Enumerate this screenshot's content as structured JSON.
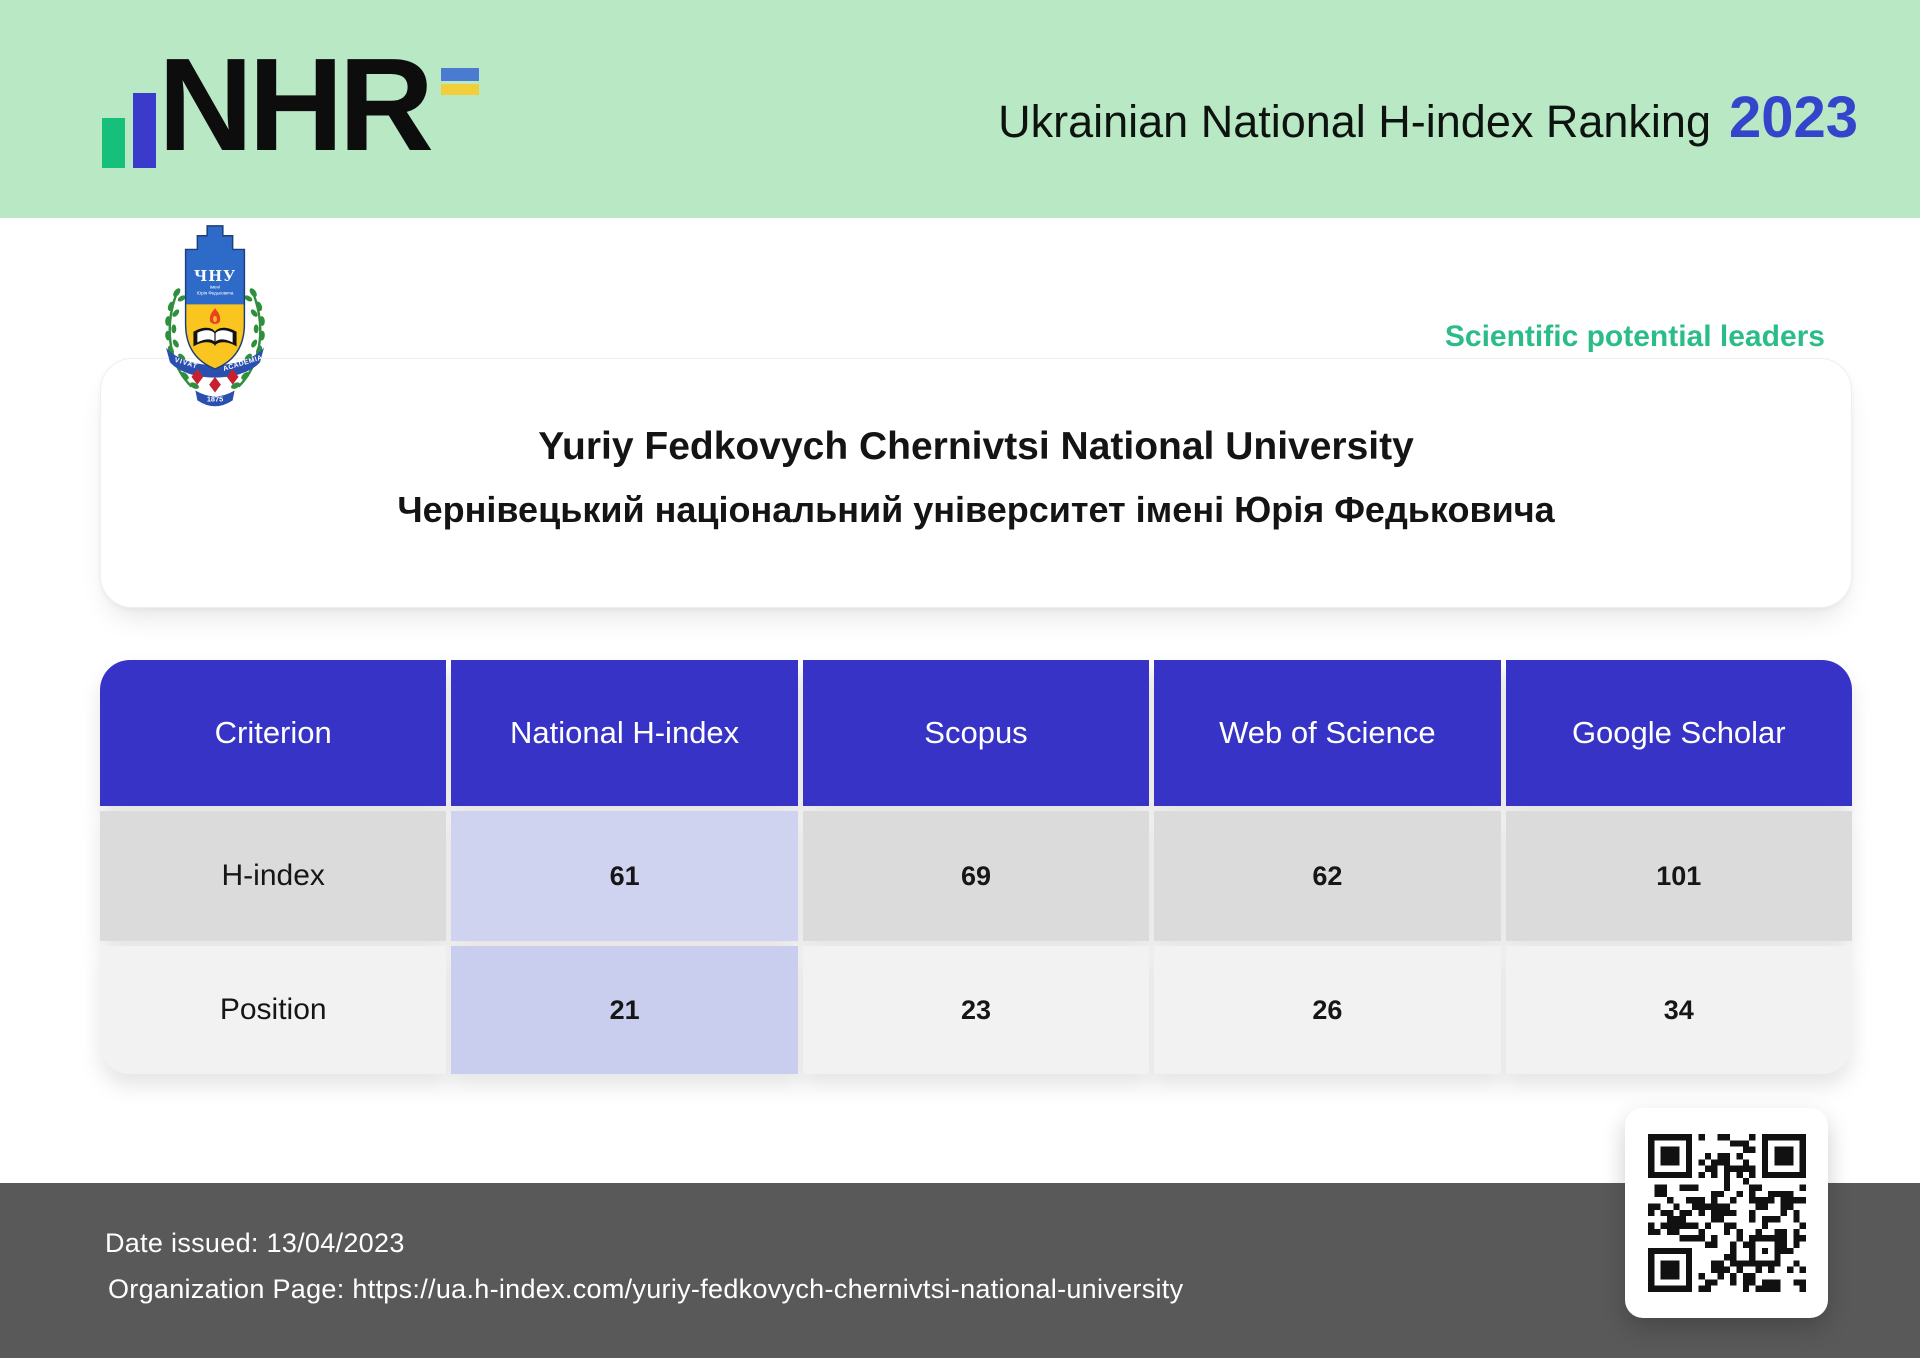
{
  "header": {
    "logo_text": "NHR",
    "title": "Ukrainian National H-index Ranking",
    "year": "2023"
  },
  "org": {
    "tagline": "Scientific potential leaders",
    "name_en": "Yuriy Fedkovych Chernivtsi National University",
    "name_uk": "Чернівецький національний університет імені Юрія Федьковича",
    "logo": {
      "abbr": "ЧНУ",
      "line1": "імені",
      "line2": "Юрія Федьковича",
      "motto_left": "VIVAT",
      "motto_right": "ACADEMIA",
      "founded": "1875"
    }
  },
  "table": {
    "columns": [
      "Criterion",
      "National H-index",
      "Scopus",
      "Web of Science",
      "Google Scholar"
    ],
    "rows": [
      {
        "label": "H-index",
        "values": [
          "61",
          "69",
          "62",
          "101"
        ]
      },
      {
        "label": "Position",
        "values": [
          "21",
          "23",
          "26",
          "34"
        ]
      }
    ]
  },
  "footer": {
    "date_label": "Date issued:",
    "date_value": "13/04/2023",
    "page_label": "Organization Page:",
    "page_url": "https://ua.h-index.com/yuriy-fedkovych-chernivtsi-national-university"
  },
  "colors": {
    "header_bg": "#b9e8c5",
    "accent_blue": "#3633c6",
    "year_blue": "#3445cc",
    "green_text": "#2bbd87",
    "footer_bg": "#595959",
    "lavender_row1": "#cfd3f0",
    "lavender_row2": "#c9ceee",
    "row1_bg": "#dbdbdb",
    "row2_bg": "#f2f2f2",
    "flag_blue": "#4a7bd0",
    "flag_yellow": "#f2cf3a",
    "bar_green": "#16c07a",
    "bar_blue": "#3a3acb"
  }
}
